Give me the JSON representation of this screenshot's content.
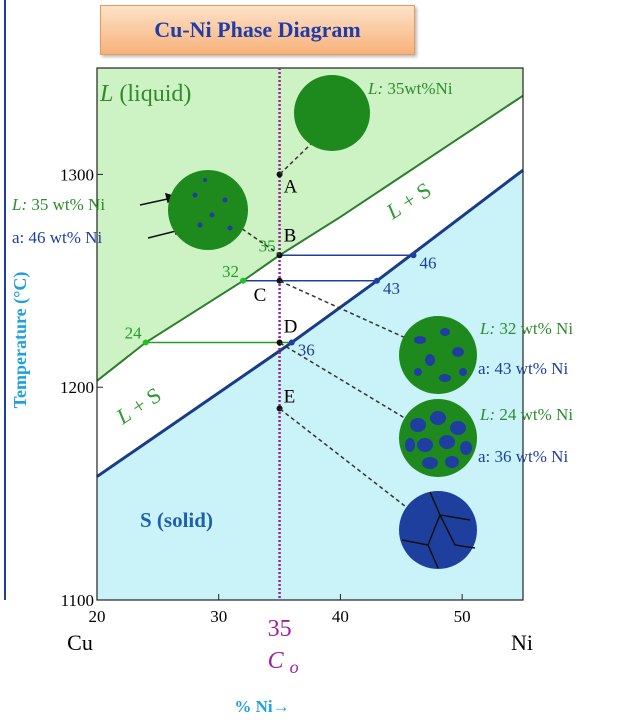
{
  "header": {
    "title": "Cu-Ni Phase Diagram"
  },
  "chart_data": {
    "type": "phase",
    "xlabel": "% Ni→",
    "ylabel": "Temperature (°C)",
    "xlim": [
      20,
      55
    ],
    "ylim": [
      1100,
      1350
    ],
    "xticks": [
      20,
      30,
      40,
      50
    ],
    "yticks": [
      1100,
      1200,
      1300
    ],
    "x_end_labels": [
      "Cu",
      "Ni"
    ],
    "composition": {
      "value": 35,
      "symbol": "C",
      "subscript": "o",
      "color": "#a020a0"
    },
    "liquidus": {
      "color": "#2e7d32",
      "x": [
        20,
        24,
        32,
        35,
        40,
        50,
        55
      ],
      "y": [
        1203,
        1221,
        1250,
        1262,
        1280,
        1318,
        1337
      ]
    },
    "solidus": {
      "color": "#1a3a8a",
      "x": [
        20,
        36,
        43,
        46,
        55
      ],
      "y": [
        1158,
        1221,
        1250,
        1263,
        1302
      ]
    },
    "region_colors": {
      "liquid": "#cdf3c4",
      "two_phase": "#ffffff",
      "solid": "#c9f3f8"
    },
    "regions": [
      {
        "label": "L (liquid)",
        "first_letter_italic": true,
        "color": "#2e8b2e"
      },
      {
        "label": "L + S",
        "first_letter_italic": true,
        "color": "#2e9b2e"
      },
      {
        "label": "L + S",
        "first_letter_italic": true,
        "color": "#2e9b2e"
      },
      {
        "label": "S (solid)",
        "first_letter_italic": false,
        "color": "#1f5fb0"
      }
    ],
    "points": [
      {
        "label": "A",
        "y": 1300
      },
      {
        "label": "B",
        "y": 1262
      },
      {
        "label": "C",
        "y": 1250
      },
      {
        "label": "D",
        "y": 1221
      },
      {
        "label": "E",
        "y": 1190
      }
    ],
    "tie_lines": [
      {
        "y": 1262,
        "x": [
          35,
          46
        ],
        "color": "#1f3fa0"
      },
      {
        "y": 1250,
        "x": [
          32,
          43
        ],
        "color": "#1f3fa0"
      },
      {
        "y": 1221,
        "x": [
          24,
          36
        ],
        "color": "#22a022"
      }
    ],
    "annotations": [
      {
        "text": "L: 35wt%Ni",
        "color": "#2e8b2e"
      },
      {
        "text": "L: 35 wt% Ni",
        "color": "#2e8b2e"
      },
      {
        "text": "a: 46 wt% Ni",
        "color": "#1f3fa0"
      },
      {
        "text": "L: 32 wt% Ni",
        "color": "#2e8b2e"
      },
      {
        "text": "a: 43 wt% Ni",
        "color": "#1f3fa0"
      },
      {
        "text": "L: 24 wt% Ni",
        "color": "#2e8b2e"
      },
      {
        "text": "a: 36 wt% Ni",
        "color": "#1f3fa0"
      }
    ]
  }
}
